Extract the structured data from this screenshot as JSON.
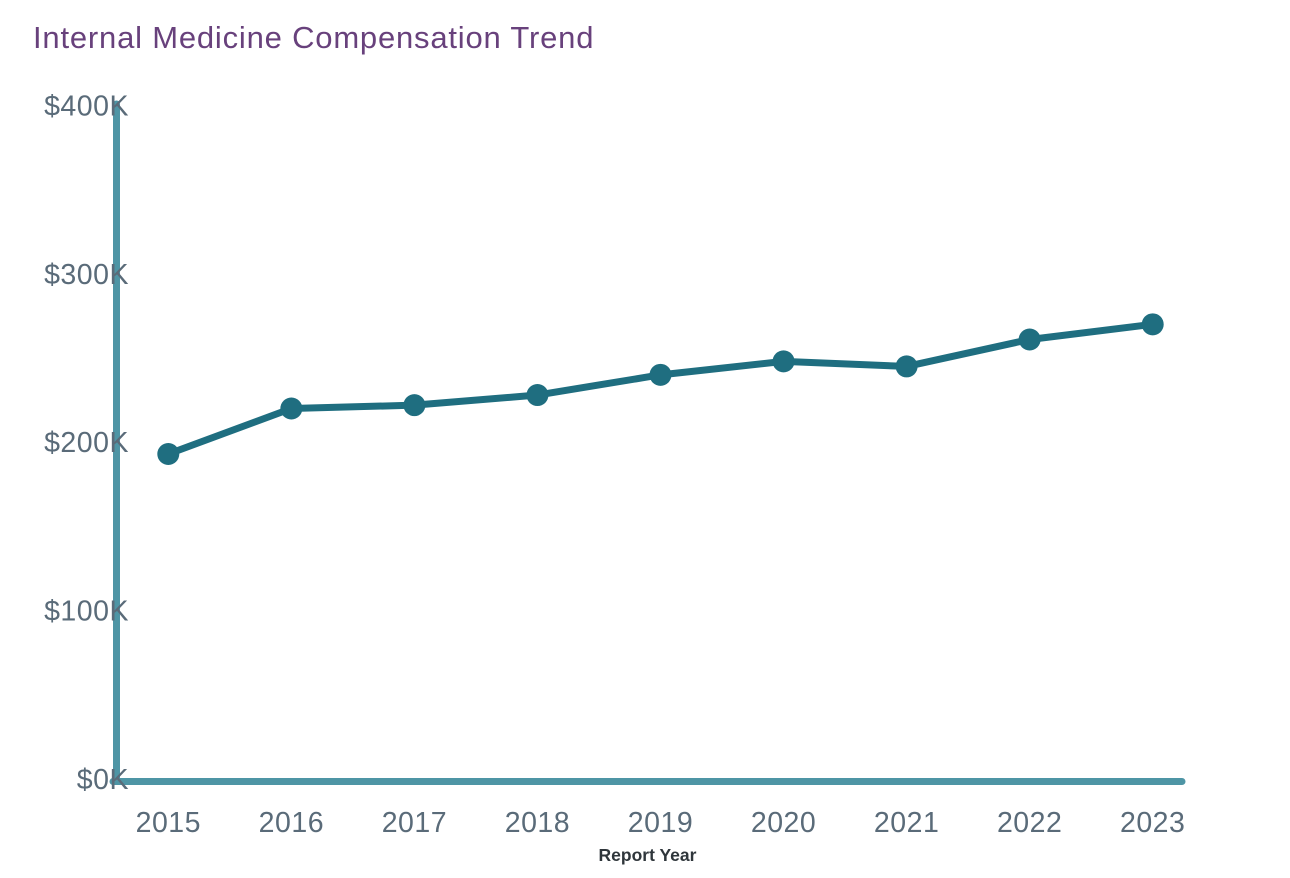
{
  "title": "Internal Medicine Compensation Trend",
  "chart_data": {
    "type": "line",
    "title": "Internal Medicine Compensation Trend",
    "x_categories": [
      "2015",
      "2016",
      "2017",
      "2018",
      "2019",
      "2020",
      "2021",
      "2022",
      "2023"
    ],
    "xlabel": "Report Year",
    "ylabel": "",
    "series": [
      {
        "name": "Internal Medicine",
        "values_usd_k": [
          193,
          220,
          222,
          228,
          240,
          248,
          245,
          261,
          270
        ]
      }
    ],
    "y_ticks": [
      {
        "value_k": 0,
        "label": "$0K"
      },
      {
        "value_k": 100,
        "label": "$100K"
      },
      {
        "value_k": 200,
        "label": "$200K"
      },
      {
        "value_k": 300,
        "label": "$300K"
      },
      {
        "value_k": 400,
        "label": "$400K"
      }
    ],
    "ylim_k": [
      0,
      400
    ],
    "grid": false,
    "legend": "none",
    "marker": "circle",
    "colors": {
      "line": "#1f6e80",
      "marker": "#1f6e80",
      "axis": "#4e95a5",
      "tick_label": "#5a6b79",
      "xlabel_text": "#2f363b",
      "title_text": "#68417c"
    }
  }
}
